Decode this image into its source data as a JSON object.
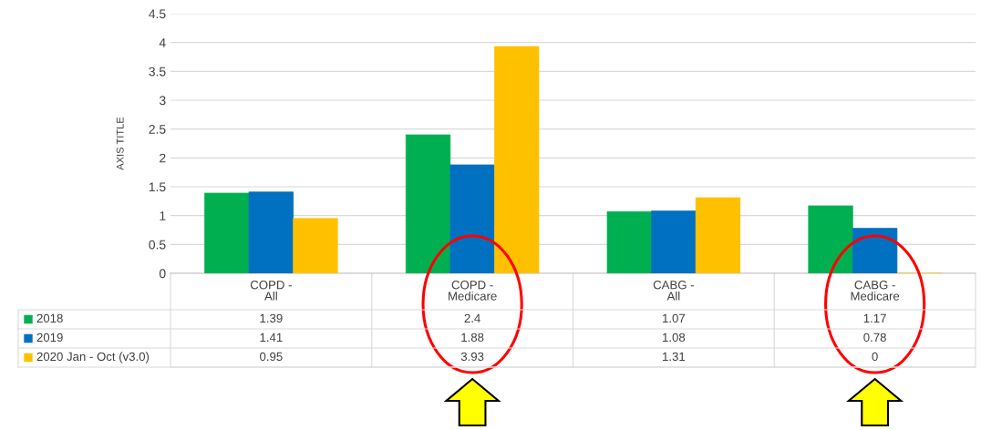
{
  "chart_data": {
    "type": "bar",
    "ylabel": "AXIS TITLE",
    "categories": [
      "COPD -\nAll",
      "COPD -\nMedicare",
      "CABG -\nAll",
      "CABG -\nMedicare"
    ],
    "series": [
      {
        "name": "2018",
        "color": "#00b050",
        "values": [
          1.39,
          2.4,
          1.07,
          1.17
        ]
      },
      {
        "name": "2019",
        "color": "#0070c0",
        "values": [
          1.41,
          1.88,
          1.08,
          0.78
        ]
      },
      {
        "name": "2020 Jan - Oct (v3.0)",
        "color": "#ffc000",
        "values": [
          0.95,
          3.93,
          1.31,
          0
        ]
      }
    ],
    "ylim": [
      0,
      4.5
    ],
    "yticks": [
      0,
      0.5,
      1,
      1.5,
      2,
      2.5,
      3,
      3.5,
      4,
      4.5
    ],
    "grid": "y",
    "legend": "bottom",
    "data_labels": true
  }
}
